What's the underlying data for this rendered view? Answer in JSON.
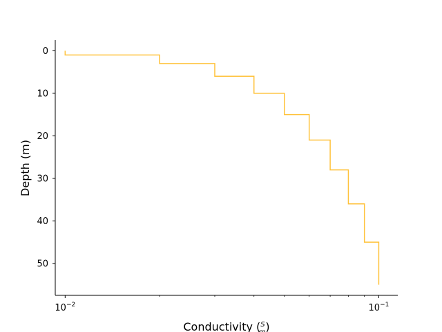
{
  "chart_data": {
    "type": "line",
    "drawstyle": "steps",
    "xlabel": "Conductivity (S/m)",
    "xlabel_main": "Conductivity (",
    "xlabel_frac_num": "S",
    "xlabel_frac_den": "m",
    "xlabel_close": ")",
    "ylabel": "Depth (m)",
    "x_scale": "log",
    "y_inverted": true,
    "xlim": [
      0.0093,
      0.115
    ],
    "ylim": [
      -2.5,
      57.5
    ],
    "x_ticks": [
      {
        "value": 0.01,
        "mantissa": "10",
        "exponent": "−2"
      },
      {
        "value": 0.1,
        "mantissa": "10",
        "exponent": "−1"
      }
    ],
    "x_minor_ticks": [
      0.02,
      0.03,
      0.04,
      0.05,
      0.06,
      0.07,
      0.08,
      0.09
    ],
    "y_ticks": [
      0,
      10,
      20,
      30,
      40,
      50
    ],
    "y_tick_labels": [
      "0",
      "10",
      "20",
      "30",
      "40",
      "50"
    ],
    "grid": false,
    "legend": "none",
    "line_color": "#ffc23b",
    "series": [
      {
        "conductivity": [
          0.01,
          0.01,
          0.02,
          0.02,
          0.03,
          0.03,
          0.04,
          0.04,
          0.05,
          0.05,
          0.06,
          0.06,
          0.07,
          0.07,
          0.08,
          0.08,
          0.09,
          0.09,
          0.1,
          0.1
        ],
        "depth": [
          0,
          1,
          1,
          3,
          3,
          6,
          6,
          10,
          10,
          15,
          15,
          21,
          21,
          28,
          28,
          36,
          36,
          45,
          45,
          55
        ]
      }
    ]
  }
}
